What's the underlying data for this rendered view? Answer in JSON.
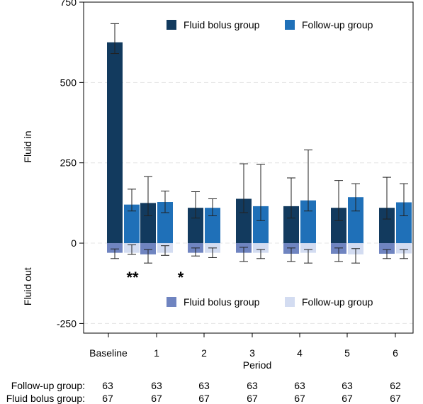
{
  "chart_data": {
    "type": "bar",
    "xlabel": "Period",
    "ylabel_top": "Fluid in",
    "ylabel_bottom": "Fluid out",
    "ylim": [
      -280,
      750
    ],
    "yticks": [
      -250,
      0,
      250,
      500,
      750
    ],
    "grid": true,
    "categories": [
      "Baseline",
      "1",
      "2",
      "3",
      "4",
      "5",
      "6"
    ],
    "fluid_in": {
      "legend_position": "top-right",
      "series": [
        {
          "name": "Fluid bolus group",
          "color": "#123a5e",
          "values": [
            625,
            125,
            110,
            138,
            115,
            110,
            110
          ],
          "err_low": [
            590,
            85,
            78,
            95,
            78,
            70,
            75
          ],
          "err_high": [
            683,
            207,
            160,
            247,
            203,
            195,
            205
          ]
        },
        {
          "name": "Follow-up group",
          "color": "#1f70b8",
          "values": [
            120,
            128,
            110,
            115,
            133,
            143,
            127
          ],
          "err_low": [
            100,
            95,
            85,
            70,
            100,
            100,
            85
          ],
          "err_high": [
            168,
            162,
            138,
            245,
            290,
            185,
            185
          ]
        }
      ]
    },
    "fluid_out": {
      "legend_position": "bottom-right",
      "series": [
        {
          "name": "Fluid bolus group",
          "color": "#6f84c0",
          "values": [
            -30,
            -35,
            -30,
            -30,
            -33,
            -33,
            -33
          ],
          "err_low": [
            -48,
            -62,
            -40,
            -57,
            -57,
            -57,
            -48
          ],
          "err_high": [
            -18,
            -20,
            -15,
            -13,
            -15,
            -15,
            -20
          ]
        },
        {
          "name": "Follow-up group",
          "color": "#d3dcf1",
          "values": [
            -30,
            -30,
            -30,
            -30,
            -30,
            -35,
            -32
          ],
          "err_low": [
            -35,
            -38,
            -45,
            -48,
            -62,
            -62,
            -48
          ],
          "err_high": [
            -5,
            -8,
            -15,
            -20,
            -20,
            -17,
            -20
          ]
        }
      ]
    },
    "annotations": [
      {
        "category": "Baseline",
        "text": "**"
      },
      {
        "category": "1",
        "text": "*"
      }
    ],
    "counts": [
      {
        "label": "Follow-up group:",
        "values": [
          "63",
          "63",
          "63",
          "63",
          "63",
          "63",
          "62"
        ]
      },
      {
        "label": "Fluid bolus group:",
        "values": [
          "67",
          "67",
          "67",
          "67",
          "67",
          "67",
          "67"
        ]
      }
    ]
  }
}
